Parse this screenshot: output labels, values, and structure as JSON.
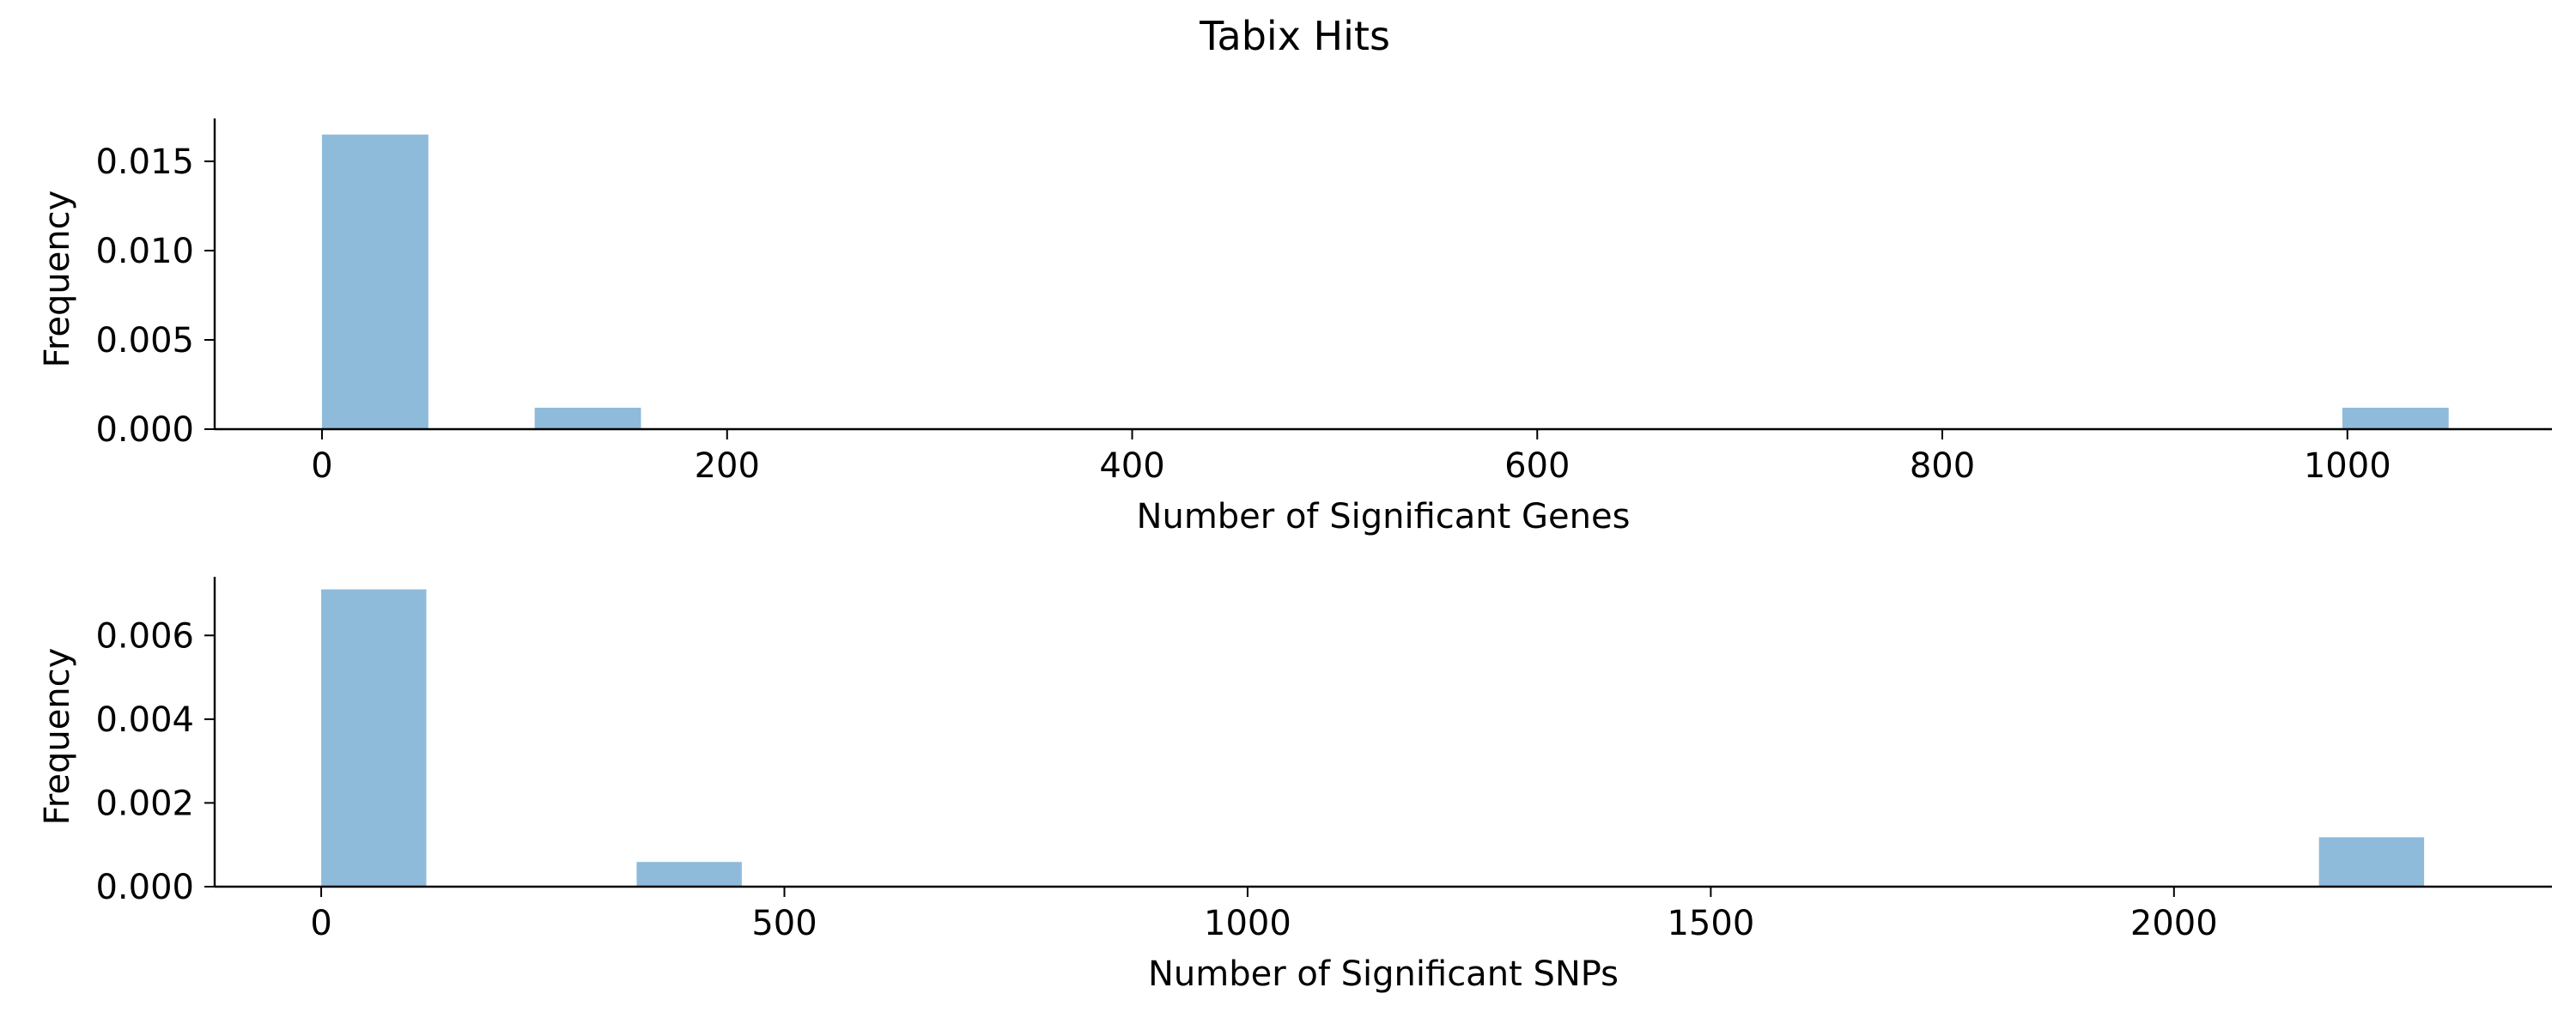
{
  "figure": {
    "title": "Tabix Hits"
  },
  "chart_data": [
    {
      "type": "bar",
      "title": "",
      "xlabel": "Number of Significant Genes",
      "ylabel": "Frequency",
      "xlim": [
        -53,
        1101
      ],
      "ylim": [
        0,
        0.0174
      ],
      "xticks": [
        0,
        200,
        400,
        600,
        800,
        1000
      ],
      "yticks": [
        0.0,
        0.005,
        0.01,
        0.015
      ],
      "ytick_labels": [
        "0.000",
        "0.005",
        "0.010",
        "0.015"
      ],
      "grid": false,
      "bins": [
        {
          "x0": 0,
          "x1": 52.5,
          "value": 0.0165
        },
        {
          "x0": 105,
          "x1": 157.5,
          "value": 0.0012
        },
        {
          "x0": 997.5,
          "x1": 1050,
          "value": 0.0012
        }
      ],
      "color": "#8fbbdb"
    },
    {
      "type": "bar",
      "title": "",
      "xlabel": "Number of Significant SNPs",
      "ylabel": "Frequency",
      "xlim": [
        -115,
        2408
      ],
      "ylim": [
        0,
        0.0074
      ],
      "xticks": [
        0,
        500,
        1000,
        1500,
        2000
      ],
      "yticks": [
        0.0,
        0.002,
        0.004,
        0.006
      ],
      "ytick_labels": [
        "0.000",
        "0.002",
        "0.004",
        "0.006"
      ],
      "grid": false,
      "bins": [
        {
          "x0": 0,
          "x1": 113.5,
          "value": 0.0071
        },
        {
          "x0": 340.5,
          "x1": 454,
          "value": 0.00059
        },
        {
          "x0": 2156.5,
          "x1": 2270,
          "value": 0.00118
        }
      ],
      "color": "#8fbbdb"
    }
  ]
}
